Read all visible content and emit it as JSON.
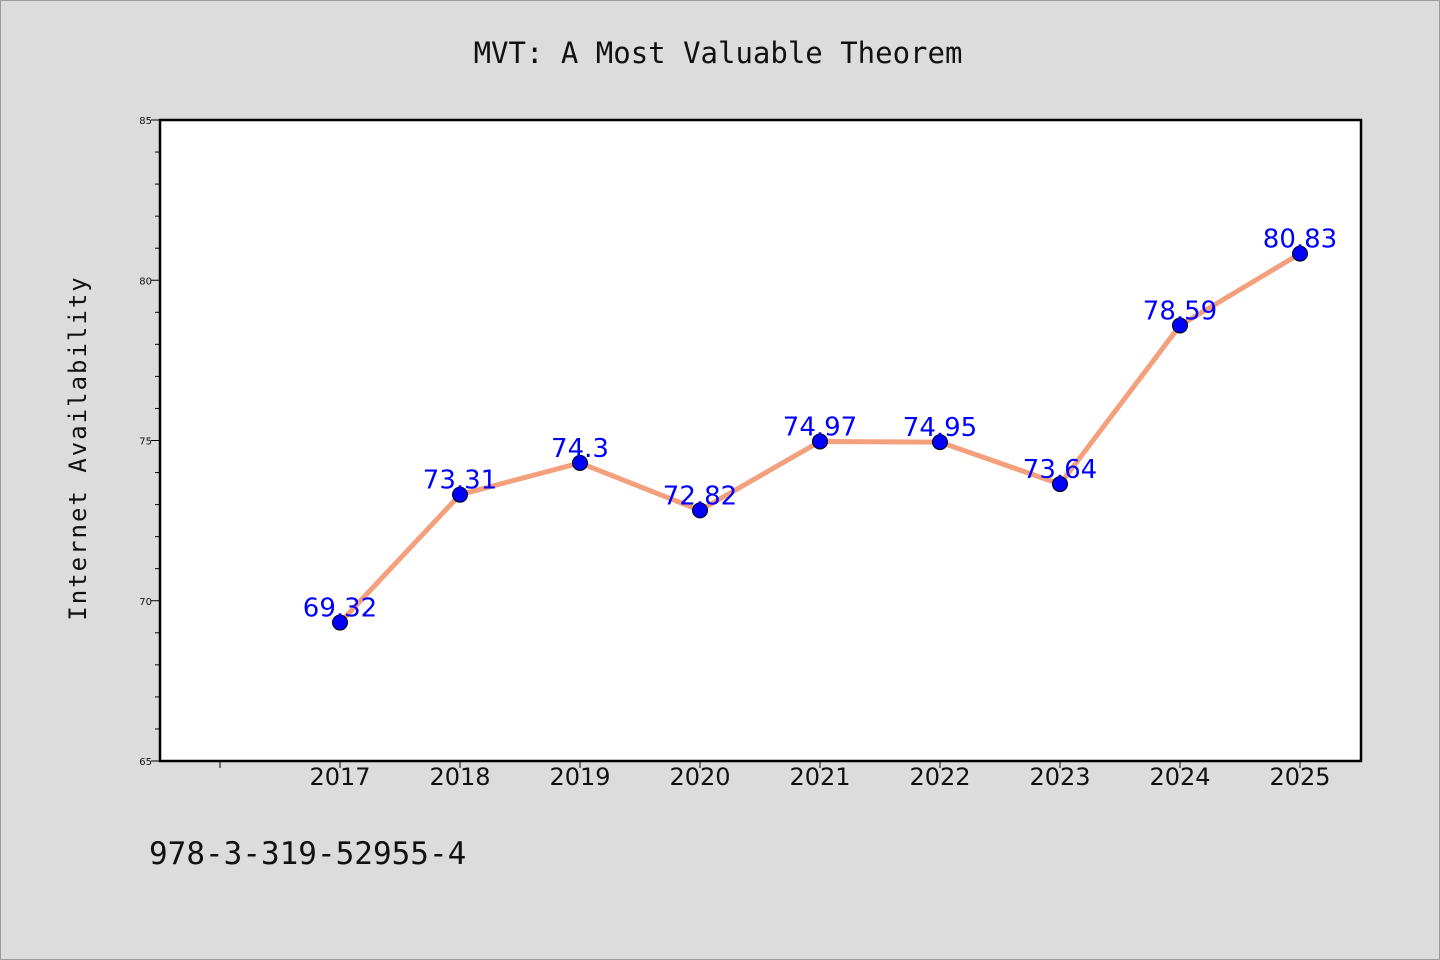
{
  "chart_data": {
    "type": "line",
    "title": "MVT: A Most Valuable Theorem",
    "xlabel": "",
    "ylabel": "Internet Availability",
    "categories": [
      "2017",
      "2018",
      "2019",
      "2020",
      "2021",
      "2022",
      "2023",
      "2024",
      "2025"
    ],
    "series": [
      {
        "values": [
          69.32,
          73.31,
          74.3,
          72.82,
          74.97,
          74.95,
          73.64,
          78.59,
          80.83
        ],
        "labels": [
          "69.32",
          "73.31",
          "74.3",
          "72.82",
          "74.97",
          "74.95",
          "73.64",
          "78.59",
          "80.83"
        ],
        "line_color": "#f4a07c",
        "marker_color": "#0000ff"
      }
    ],
    "ylim": [
      65,
      85
    ],
    "yticks": [
      "65",
      "70",
      "75",
      "80",
      "85"
    ],
    "grid": false,
    "legend": "none"
  },
  "footer": {
    "isbn": "978-3-319-52955-4"
  }
}
